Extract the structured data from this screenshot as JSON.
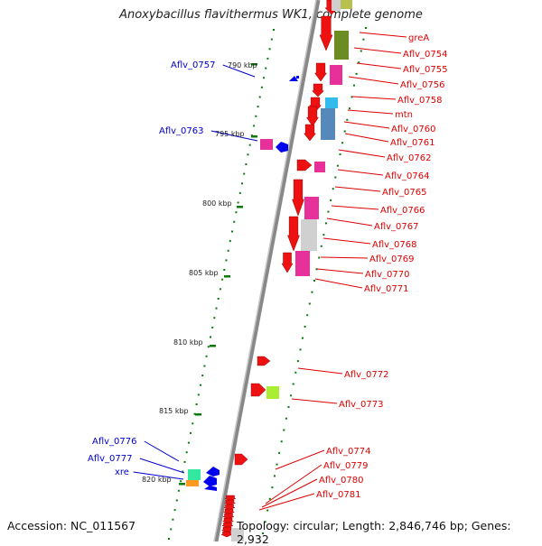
{
  "title": "Anoxybacillus flavithermus WK1, complete genome",
  "footer": {
    "accession": "Accession: NC_011567",
    "topology": "Topology: circular; Length: 2,846,746 bp; Genes: 2,932"
  },
  "colors": {
    "forward_label": "#dd0000",
    "reverse_label": "#0000cc",
    "backbone": "#888888",
    "scale": "#0a7a0a"
  },
  "scale_labels": [
    "790 kbp",
    "795 kbp",
    "800 kbp",
    "805 kbp",
    "810 kbp",
    "815 kbp",
    "820 kbp"
  ],
  "right_labels": [
    "greA",
    "Aflv_0754",
    "Aflv_0755",
    "Aflv_0756",
    "Aflv_0758",
    "mtn",
    "Aflv_0760",
    "Aflv_0761",
    "Aflv_0762",
    "Aflv_0764",
    "Aflv_0765",
    "Aflv_0766",
    "Aflv_0767",
    "Aflv_0768",
    "Aflv_0769",
    "Aflv_0770",
    "Aflv_0771",
    "Aflv_0772",
    "Aflv_0773",
    "Aflv_0774",
    "Aflv_0779",
    "Aflv_0780",
    "Aflv_0781"
  ],
  "left_labels": [
    "Aflv_0757",
    "Aflv_0763",
    "Aflv_0776",
    "Aflv_0777",
    "xre"
  ]
}
